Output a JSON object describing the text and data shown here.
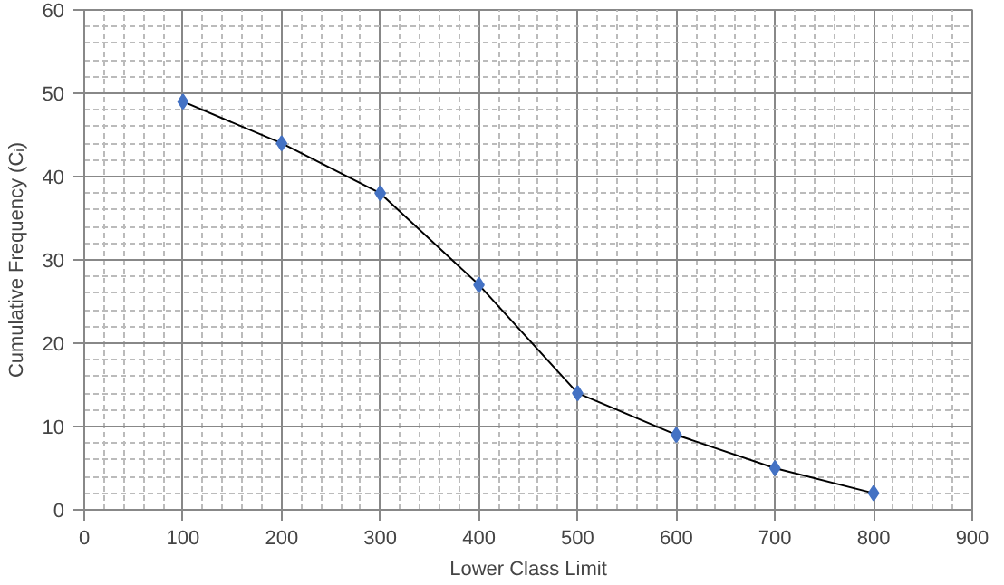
{
  "chart_data": {
    "type": "line",
    "xlabel": "Lower Class Limit",
    "ylabel": "Cumulative Frequency (Cᵢ)",
    "x": [
      100,
      200,
      300,
      400,
      500,
      600,
      700,
      800
    ],
    "series": [
      {
        "color": "#4472c4",
        "values": [
          49,
          44,
          38,
          27,
          14,
          9,
          5,
          2
        ]
      }
    ],
    "xlim": [
      0,
      900
    ],
    "xticks": [
      0,
      100,
      200,
      300,
      400,
      500,
      600,
      700,
      800,
      900
    ],
    "ylim": [
      0,
      60
    ],
    "yticks": [
      0,
      10,
      20,
      30,
      40,
      50,
      60
    ],
    "grid": true,
    "marker": "diamond",
    "line_style": "solid"
  }
}
